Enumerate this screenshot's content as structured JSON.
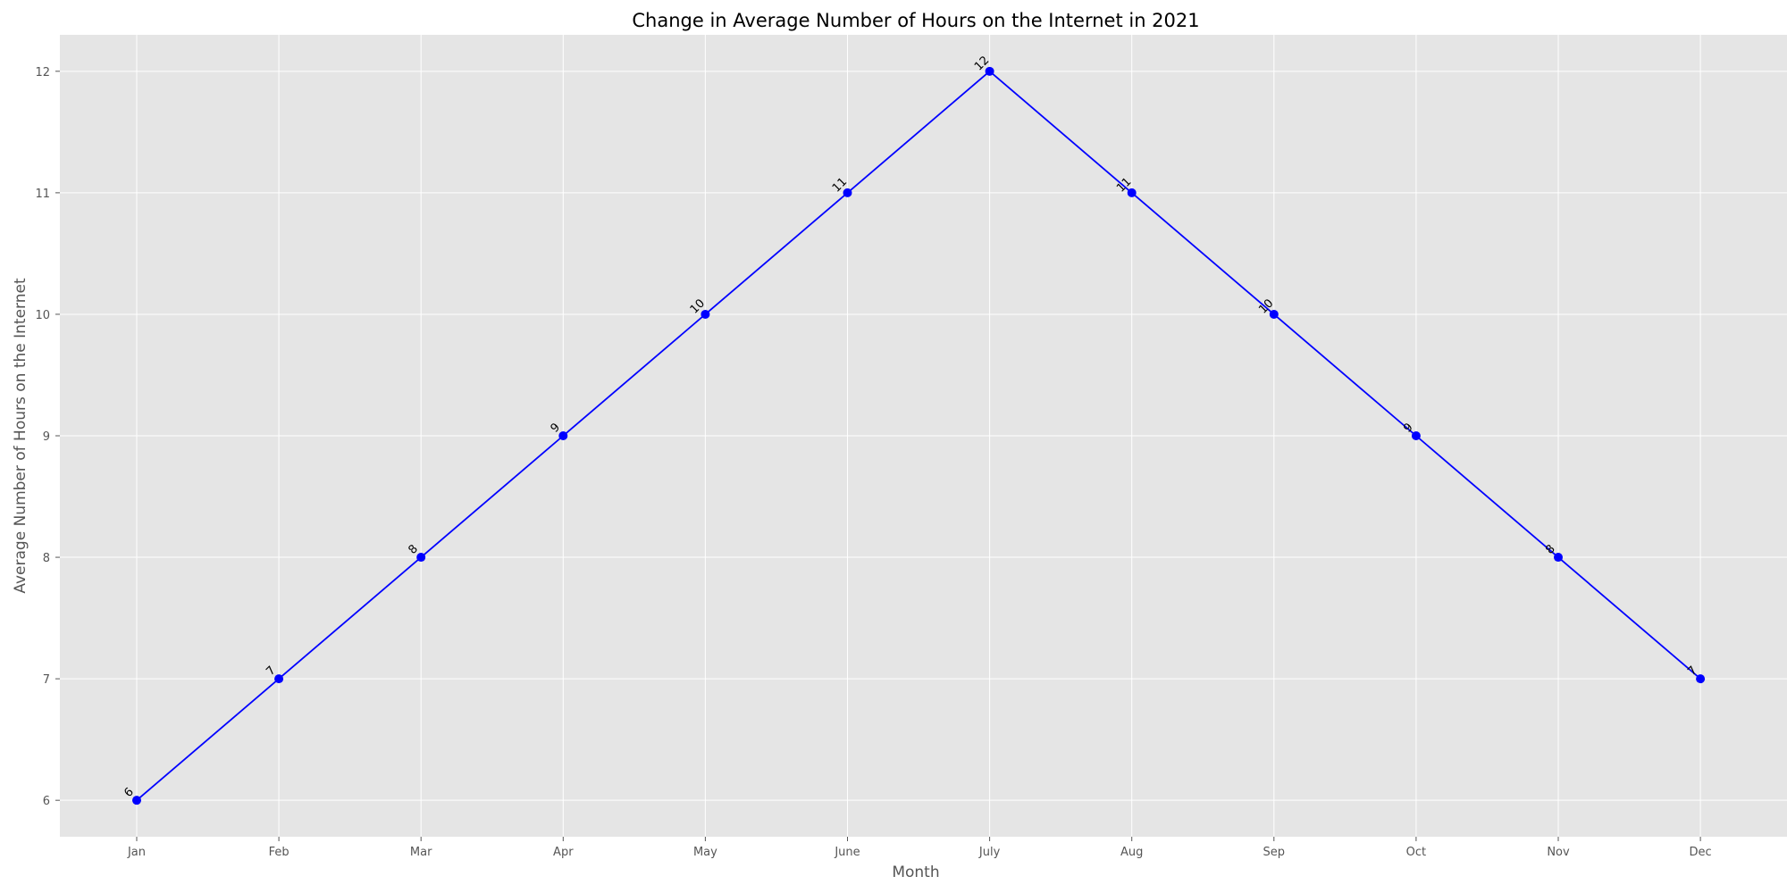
{
  "chart_data": {
    "type": "line",
    "title": "Change in Average Number of Hours on the Internet in 2021",
    "xlabel": "Month",
    "ylabel": "Average Number of Hours on the Internet",
    "categories": [
      "Jan",
      "Feb",
      "Mar",
      "Apr",
      "May",
      "June",
      "July",
      "Aug",
      "Sep",
      "Oct",
      "Nov",
      "Dec"
    ],
    "series": [
      {
        "values": [
          6,
          7,
          8,
          9,
          10,
          11,
          12,
          11,
          10,
          9,
          8,
          7
        ],
        "color": "#0000ff"
      }
    ],
    "ylim": [
      5.7,
      12.3
    ],
    "yticks": [
      6,
      7,
      8,
      9,
      10,
      11,
      12
    ],
    "grid": true,
    "legend": "none",
    "background_color": "#e5e5e5",
    "grid_color": "#ffffff",
    "data_labels": true
  }
}
